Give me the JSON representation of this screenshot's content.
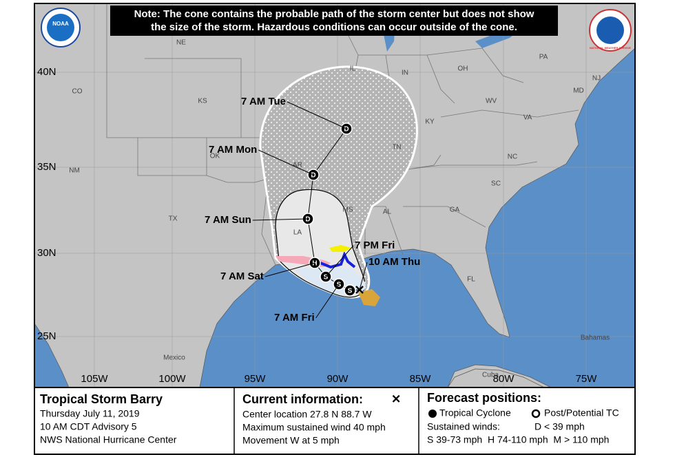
{
  "note": [
    "Note: The cone contains the probable path of the storm center but does not show",
    "the size of the storm. Hazardous conditions can occur outside of the cone."
  ],
  "logos": {
    "noaa": "NOAA",
    "nws": "NATIONAL WEATHER SERVICE"
  },
  "map": {
    "lat_labels": [
      "40N",
      "35N",
      "30N",
      "25N"
    ],
    "lon_labels": [
      "105W",
      "100W",
      "95W",
      "90W",
      "85W",
      "80W",
      "75W"
    ],
    "place_labels": [
      "NE",
      "IL",
      "IN",
      "OH",
      "PA",
      "CO",
      "KS",
      "WV",
      "MD",
      "NJ",
      "VA",
      "KY",
      "OK",
      "AR",
      "TN",
      "NC",
      "NM",
      "SC",
      "TX",
      "MS",
      "AL",
      "GA",
      "LA",
      "FL",
      "Mexico",
      "Bahamas",
      "Cuba"
    ],
    "time_labels": [
      "7 AM Tue",
      "7 AM Mon",
      "7 AM Sun",
      "7 PM Fri",
      "10 AM Thu",
      "7 AM Sat",
      "7 AM Fri"
    ],
    "position_symbols": [
      "D",
      "D",
      "D",
      "H",
      "S",
      "S",
      "S"
    ]
  },
  "legend": {
    "storm": {
      "title": "Tropical Storm Barry",
      "lines": [
        "Thursday July 11, 2019",
        "10 AM CDT Advisory 5",
        "NWS National Hurricane Center"
      ]
    },
    "current": {
      "title": "Current information:",
      "symbol": "✕",
      "lines": [
        "Center location 27.8 N 88.7 W",
        "Maximum sustained wind 40 mph",
        "Movement W at 5 mph"
      ]
    },
    "forecast": {
      "title": "Forecast positions:",
      "tropical_cyclone": "Tropical Cyclone",
      "post_tc": "Post/Potential TC",
      "winds_title": "Sustained winds:",
      "winds_d": "D < 39 mph",
      "winds_other": "S 39-73 mph  H 74-110 mph  M > 110 mph"
    }
  }
}
